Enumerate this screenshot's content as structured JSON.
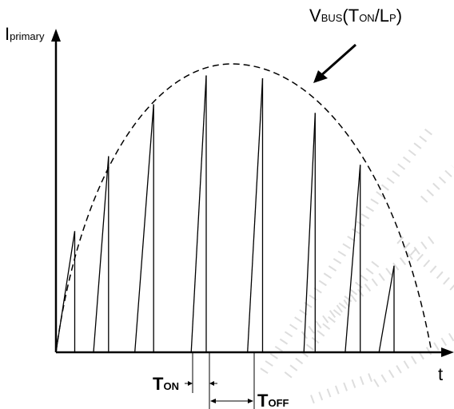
{
  "y_axis_label": {
    "main": "I",
    "sub": "primary"
  },
  "x_axis_label": "t",
  "envelope_label": {
    "v": "V",
    "bus": "BUS",
    "open": "(T",
    "on": "ON",
    "slash": "/L",
    "p": "P",
    "close": ")"
  },
  "ton_label": {
    "t": "T",
    "sub": "ON"
  },
  "toff_label": {
    "t": "T",
    "sub": "OFF"
  },
  "colors": {
    "line": "#000000",
    "watermark": "#d4d4d4"
  },
  "chart_data": {
    "type": "diagram",
    "description_free": true,
    "pulses": [
      {
        "start": 0.0,
        "end": 0.05,
        "peak": 0.42
      },
      {
        "start": 0.1,
        "end": 0.14,
        "peak": 0.68
      },
      {
        "start": 0.21,
        "end": 0.26,
        "peak": 0.86
      },
      {
        "start": 0.36,
        "end": 0.4,
        "peak": 0.96
      },
      {
        "start": 0.51,
        "end": 0.55,
        "peak": 0.95
      },
      {
        "start": 0.66,
        "end": 0.69,
        "peak": 0.83
      },
      {
        "start": 0.77,
        "end": 0.81,
        "peak": 0.65
      },
      {
        "start": 0.86,
        "end": 0.9,
        "peak": 0.3
      }
    ],
    "envelope": "half-sine"
  }
}
